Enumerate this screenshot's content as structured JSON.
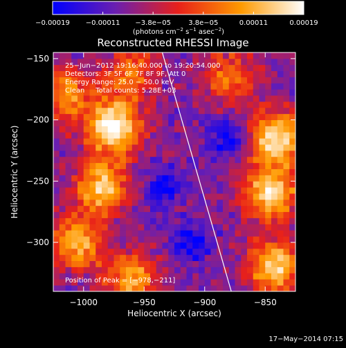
{
  "chart_data": {
    "type": "heatmap",
    "title": "Reconstructed RHESSI Image",
    "xlabel": "Heliocentric X (arcsec)",
    "ylabel": "Heliocentric Y (arcsec)",
    "xlim": [
      -1025,
      -825
    ],
    "ylim": [
      -340,
      -145
    ],
    "x_ticks": [
      -1000,
      -950,
      -900,
      -850
    ],
    "x_tick_labels": [
      "−1000",
      "−950",
      "−900",
      "−850"
    ],
    "y_ticks": [
      -150,
      -200,
      -250,
      -300
    ],
    "y_tick_labels": [
      "−150",
      "−200",
      "−250",
      "−300"
    ],
    "colorbar": {
      "range": [
        -0.00019,
        0.00019
      ],
      "tick_labels": [
        "−0.00019",
        "−0.00011",
        "−3.8e−05",
        "3.8e−05",
        "0.00011",
        "0.00019"
      ],
      "units_prefix": "(photons cm",
      "units_exp1": "−2",
      "units_mid": " s",
      "units_exp2": "−1",
      "units_mid2": " asec",
      "units_exp3": "−2",
      "units_suffix": ")",
      "colors": [
        "#0000ff",
        "#6a1fb0",
        "#e8201a",
        "#ff9a00",
        "#ffffff"
      ]
    },
    "annotations": {
      "line1": "25−Jun−2012 19:16:40.000 to 19:20:54.000",
      "line2": "Detectors: 3F 5F 6F 7F 8F 9F, Att 0",
      "line3": "Energy Range: 25.0 − 50.0 keV",
      "line4": "Clean     Total counts: 5.28E+03",
      "peak": "Position of Peak = [−978,−211]"
    },
    "limb_line": [
      [
        -935,
        -145
      ],
      [
        -878,
        -340
      ]
    ],
    "hot_spots": [
      {
        "x": -975,
        "y": -205,
        "intensity": 1.0
      },
      {
        "x": -985,
        "y": -255,
        "intensity": 0.8
      },
      {
        "x": -1015,
        "y": -180,
        "intensity": 0.6
      },
      {
        "x": -1005,
        "y": -300,
        "intensity": 0.7
      },
      {
        "x": -960,
        "y": -330,
        "intensity": 0.7
      },
      {
        "x": -960,
        "y": -160,
        "intensity": 0.5
      },
      {
        "x": -840,
        "y": -215,
        "intensity": 0.9
      },
      {
        "x": -845,
        "y": -260,
        "intensity": 0.85
      },
      {
        "x": -842,
        "y": -320,
        "intensity": 0.8
      },
      {
        "x": -880,
        "y": -165,
        "intensity": 0.5
      }
    ],
    "cold_spots": [
      {
        "x": -910,
        "y": -300
      },
      {
        "x": -880,
        "y": -215
      },
      {
        "x": -935,
        "y": -255
      }
    ]
  },
  "footer": {
    "date": "17−May−2014 07:15"
  }
}
